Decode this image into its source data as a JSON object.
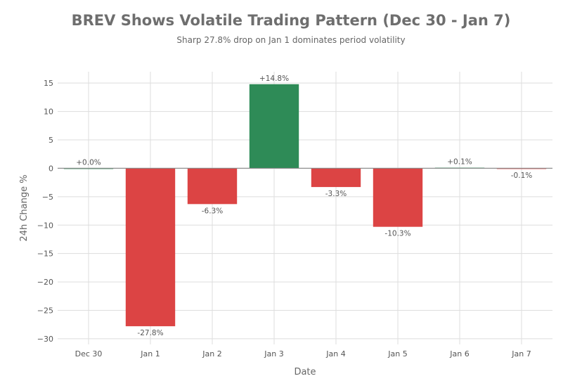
{
  "chart_data": {
    "type": "bar",
    "title": "BREV Shows Volatile Trading Pattern (Dec 30 - Jan 7)",
    "subtitle": "Sharp 27.8% drop on Jan 1 dominates period volatility",
    "xlabel": "Date",
    "ylabel": "24h Change %",
    "categories": [
      "Dec 30",
      "Jan 1",
      "Jan 2",
      "Jan 3",
      "Jan 4",
      "Jan 5",
      "Jan 6",
      "Jan 7"
    ],
    "values": [
      0.0,
      -27.8,
      -6.3,
      14.8,
      -3.3,
      -10.3,
      0.1,
      -0.1
    ],
    "data_labels": [
      "+0.0%",
      "-27.8%",
      "-6.3%",
      "+14.8%",
      "-3.3%",
      "-10.3%",
      "+0.1%",
      "-0.1%"
    ],
    "ylim": [
      -31,
      17
    ],
    "yticks": [
      15,
      10,
      5,
      0,
      -5,
      -10,
      -15,
      -20,
      -25,
      -30
    ],
    "ytick_labels": [
      "15",
      "10",
      "5",
      "0",
      "−5",
      "−10",
      "−15",
      "−20",
      "−25",
      "−30"
    ],
    "grid": true,
    "legend": "none",
    "colors": {
      "positive": "#2e8b57",
      "negative": "#dc4444",
      "title": "#6e6e6e",
      "grid": "#dddddd"
    }
  }
}
